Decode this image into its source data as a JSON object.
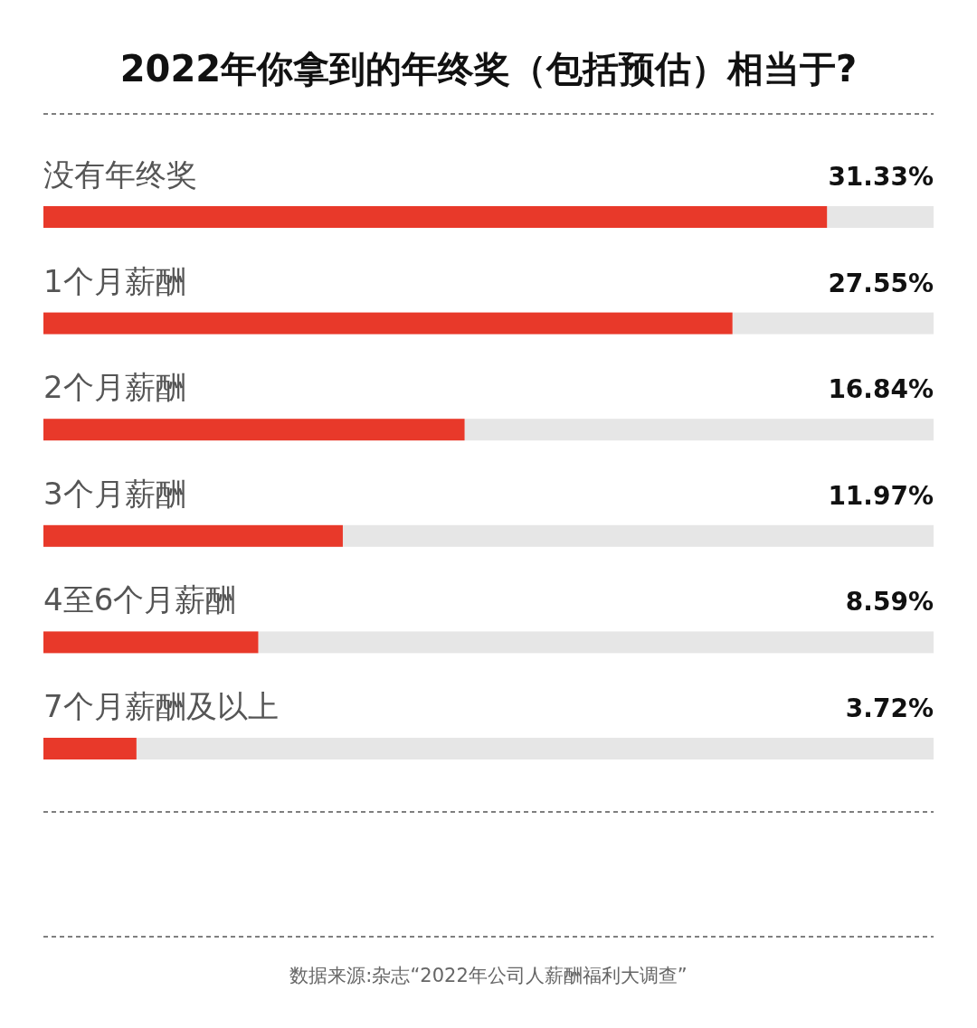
{
  "chart_data": {
    "type": "bar",
    "orientation": "horizontal",
    "relative": false,
    "title": "2022年你拿到的年终奖（包括预估）相当于?",
    "categories": [
      "没有年终奖",
      "1个月薪酬",
      "2个月薪酬",
      "3个月薪酬",
      "4至6个月薪酬",
      "7个月薪酬及以上"
    ],
    "values": [
      31.33,
      27.55,
      16.84,
      11.97,
      8.59,
      3.72
    ],
    "value_labels": [
      "31.33%",
      "27.55%",
      "16.84%",
      "11.97%",
      "8.59%",
      "3.72%"
    ],
    "color": "#e8392a",
    "annotations": [
      "数据来源:杂志“2022年公司人薪酬福利大调查”"
    ]
  }
}
